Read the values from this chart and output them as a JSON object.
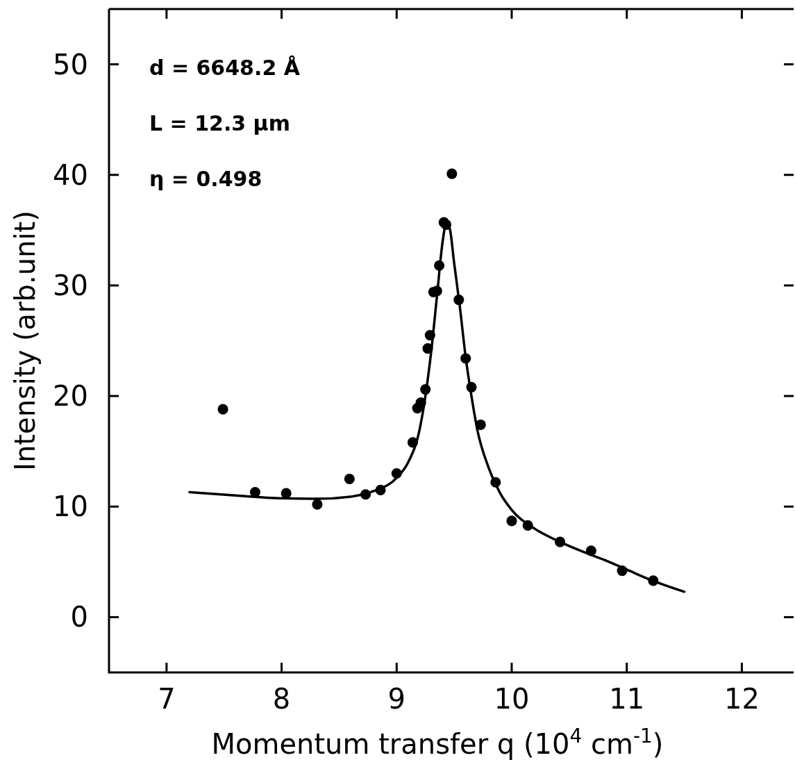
{
  "chart_data": {
    "type": "scatter",
    "xlabel": "Momentum transfer q (10$^{4}$ cm$^{-1}$)",
    "ylabel": "Intensity (arb.unit)",
    "annotations": [
      "d = 6648.2 Å",
      "L = 12.3 μm",
      "η = 0.498"
    ],
    "xlim": [
      6.5,
      12.45
    ],
    "ylim": [
      -5,
      55
    ],
    "xticks": [
      7,
      8,
      9,
      10,
      11,
      12
    ],
    "yticks": [
      0,
      10,
      20,
      30,
      40,
      50
    ],
    "grid": false,
    "series": [
      {
        "color": "#000000",
        "marker": "circle",
        "x": [
          7.49,
          7.77,
          8.04,
          8.31,
          8.59,
          8.73,
          8.86,
          9.0,
          9.14,
          9.18,
          9.21,
          9.25,
          9.27,
          9.29,
          9.32,
          9.35,
          9.37,
          9.41,
          9.43,
          9.48,
          9.54,
          9.6,
          9.65,
          9.73,
          9.86,
          10.0,
          10.14,
          10.42,
          10.69,
          10.96,
          11.23
        ],
        "values": [
          18.8,
          11.3,
          11.2,
          10.2,
          12.5,
          11.1,
          11.5,
          13.0,
          15.8,
          18.9,
          19.4,
          20.6,
          24.3,
          25.5,
          29.4,
          29.5,
          31.8,
          35.7,
          35.5,
          40.1,
          28.7,
          23.4,
          20.8,
          17.4,
          12.2,
          8.7,
          8.3,
          6.8,
          6.0,
          4.2,
          3.3
        ]
      },
      {
        "type": "line",
        "color": "#000000",
        "line_style": "solid",
        "x": [
          7.2,
          7.6,
          8.0,
          8.3,
          8.6,
          8.8,
          9.0,
          9.1,
          9.2,
          9.3,
          9.35,
          9.4,
          9.43,
          9.46,
          9.5,
          9.55,
          9.6,
          9.65,
          9.7,
          9.8,
          9.9,
          10.0,
          10.2,
          10.4,
          10.6,
          10.8,
          11.0,
          11.2,
          11.5
        ],
        "values": [
          11.3,
          11.0,
          10.75,
          10.7,
          10.9,
          11.4,
          12.6,
          14.0,
          17.0,
          24,
          29,
          34,
          35.6,
          35.2,
          32,
          28,
          23.5,
          20,
          17,
          13.5,
          11.2,
          9.7,
          8.0,
          6.9,
          6.0,
          5.2,
          4.3,
          3.4,
          2.3
        ]
      }
    ]
  }
}
